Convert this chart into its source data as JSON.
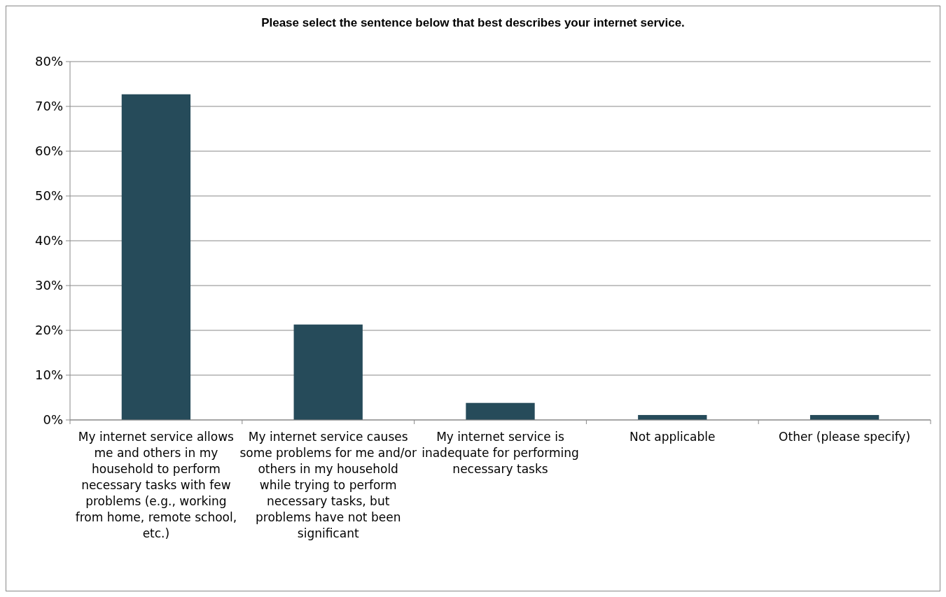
{
  "chart_data": {
    "type": "bar",
    "title": "Please select the sentence below that best describes your internet service.",
    "categories": [
      "My internet service allows me and others in my household to perform necessary tasks with few problems (e.g., working from home, remote school, etc.)",
      "My internet service causes some problems for me and/or others in my household while trying to perform necessary tasks, but problems have not been significant",
      "My internet service is inadequate for performing necessary tasks",
      "Not applicable",
      "Other (please specify)"
    ],
    "values": [
      72.7,
      21.3,
      3.8,
      1.1,
      1.1
    ],
    "color": "#264b5a",
    "ylim": [
      0,
      80
    ],
    "yticks": [
      {
        "value": 0,
        "label": "0%"
      },
      {
        "value": 10,
        "label": "10%"
      },
      {
        "value": 20,
        "label": "20%"
      },
      {
        "value": 30,
        "label": "30%"
      },
      {
        "value": 40,
        "label": "40%"
      },
      {
        "value": 50,
        "label": "50%"
      },
      {
        "value": 60,
        "label": "60%"
      },
      {
        "value": 70,
        "label": "70%"
      },
      {
        "value": 80,
        "label": "80%"
      }
    ],
    "grid": "y"
  }
}
